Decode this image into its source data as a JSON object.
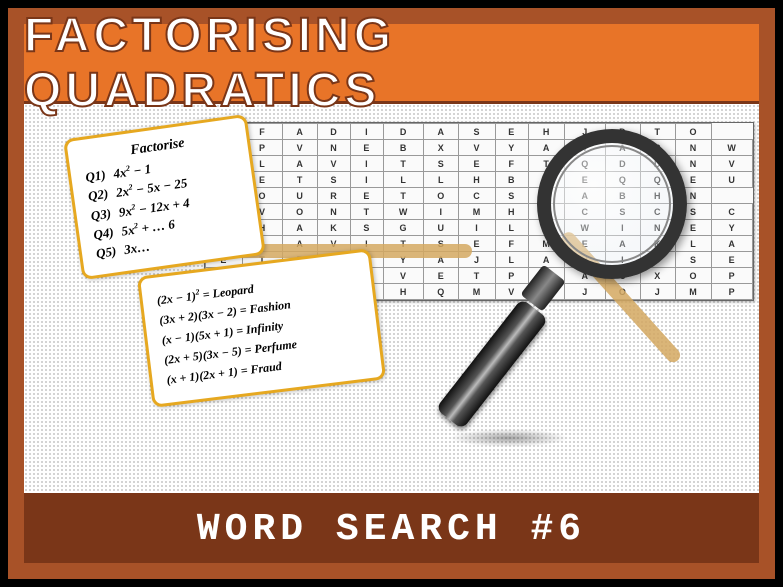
{
  "header": {
    "title": "FACTORISING QUADRATICS",
    "bg": "#e87428",
    "fg": "#ffffff"
  },
  "footer": {
    "title": "WORD SEARCH #6",
    "bg": "#7a3618",
    "fg": "#ffffff"
  },
  "colors": {
    "border": "#a85228",
    "card_border": "#e6a820",
    "highlight": "#d4a860"
  },
  "questions": {
    "heading": "Factorise",
    "items": [
      {
        "q": "Q1)",
        "eq": "4x² − 1"
      },
      {
        "q": "Q2)",
        "eq": "2x² − 5x − 25"
      },
      {
        "q": "Q3)",
        "eq": "9x² − 12x + 4"
      },
      {
        "q": "Q4)",
        "eq": "5x² + … 6"
      },
      {
        "q": "Q5)",
        "eq": "3x…"
      }
    ]
  },
  "answers": {
    "items": [
      {
        "eq": "(2x − 1)² = Leopard"
      },
      {
        "eq": "(3x + 2)(3x − 2) = Fashion"
      },
      {
        "eq": "(x − 1)(5x + 1) = Infinity"
      },
      {
        "eq": "(2x + 5)(3x − 5) = Perfume"
      },
      {
        "eq": "(x + 1)(2x + 1) = Fraud"
      }
    ]
  },
  "wordsearch": {
    "highlighted_word": "RETSILLH",
    "diagonal_word": "YAVAR",
    "rows": [
      "B F A D I D A S E H J D T O",
      "U P V N E B X V Y A V A R N W",
      "S L A V I T S E F T Q D D N V",
      "R E T S I L L H B L E Q Q E U",
      "I O U R E T O C S X A B H N",
      "T V O N T W I M H K C S C S C",
      "M H A K S G U I L D W I N E Y",
      "X L A V I T S E F M E A K L A",
      "E T E Z T Y A J L A V I T S E",
      "Z B T S A V E T P V A C X O P",
      "X W U B D H Q M V J J O J M P"
    ],
    "grid_style": {
      "cell_font_size": 9,
      "border_color": "#999999",
      "text_color": "#333333"
    }
  }
}
